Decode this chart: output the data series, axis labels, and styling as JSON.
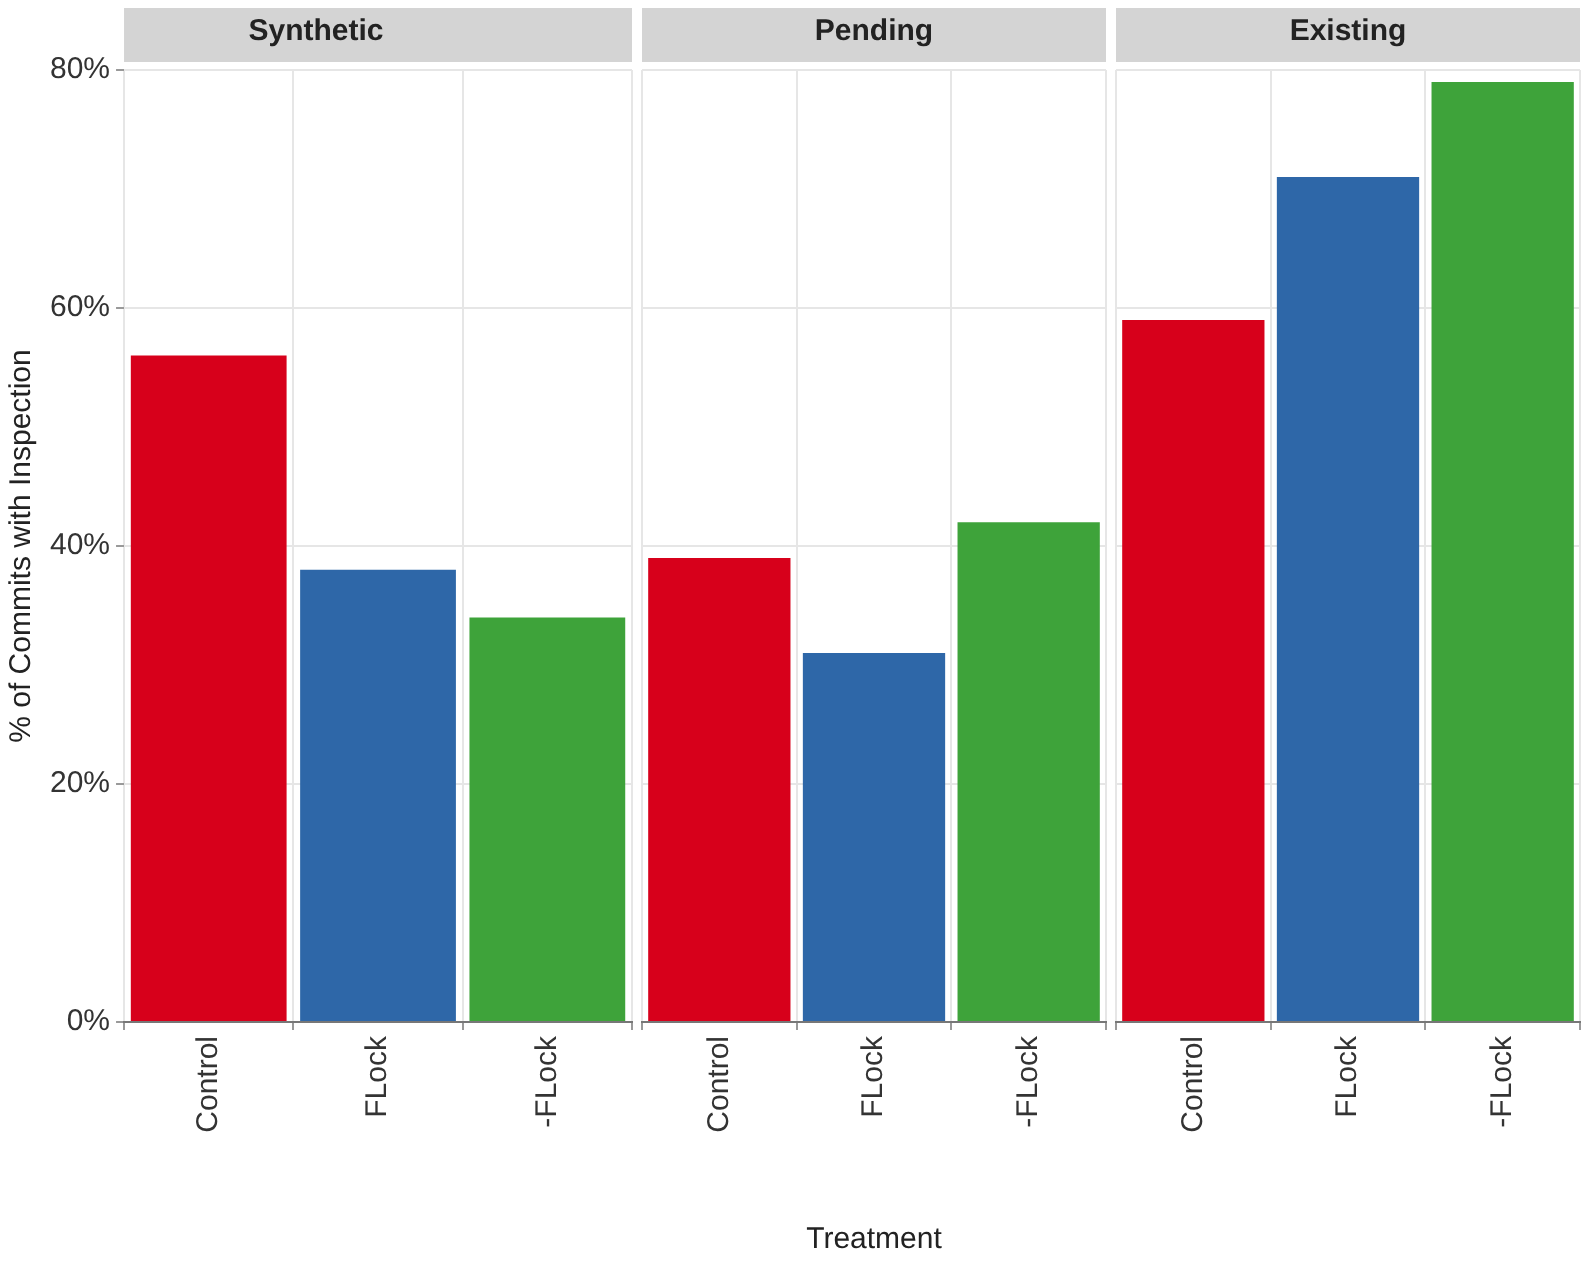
{
  "chart_data": [
    {
      "type": "bar",
      "title": "Synthetic",
      "ylabel": "% of Commits with Inspection",
      "categories": [
        "Control",
        "FLock",
        "-FLock"
      ],
      "values": [
        56,
        38,
        34
      ],
      "colors": [
        "#d7001b",
        "#2e67a8",
        "#3ea33a"
      ],
      "ylim": [
        0,
        80
      ],
      "yticks": [
        {
          "value": 0,
          "label": "0%"
        },
        {
          "value": 20,
          "label": "20%"
        },
        {
          "value": 40,
          "label": "40%"
        },
        {
          "value": 60,
          "label": "60%"
        },
        {
          "value": 80,
          "label": "80%"
        }
      ],
      "grid": true,
      "legend": false
    },
    {
      "type": "bar",
      "title": "Pending",
      "xlabel": "Treatment",
      "categories": [
        "Control",
        "FLock",
        "-FLock"
      ],
      "values": [
        39,
        31,
        42
      ],
      "colors": [
        "#d7001b",
        "#2e67a8",
        "#3ea33a"
      ],
      "ylim": [
        0,
        80
      ],
      "yticks": [
        {
          "value": 0,
          "label": null
        },
        {
          "value": 20,
          "label": null
        },
        {
          "value": 40,
          "label": null
        },
        {
          "value": 60,
          "label": null
        },
        {
          "value": 80,
          "label": null
        }
      ],
      "tick_labels": "x",
      "grid": true,
      "legend": false
    },
    {
      "type": "bar",
      "title": "Existing",
      "categories": [
        "Control",
        "FLock",
        "-FLock"
      ],
      "values": [
        59,
        71,
        79
      ],
      "colors": [
        "#d7001b",
        "#2e67a8",
        "#3ea33a"
      ],
      "ylim": [
        0,
        80
      ],
      "yticks": [
        {
          "value": 0,
          "label": null
        },
        {
          "value": 20,
          "label": null
        },
        {
          "value": 40,
          "label": null
        },
        {
          "value": 60,
          "label": null
        },
        {
          "value": 80,
          "label": null
        }
      ],
      "tick_labels": "x",
      "grid": true,
      "legend": false
    }
  ]
}
